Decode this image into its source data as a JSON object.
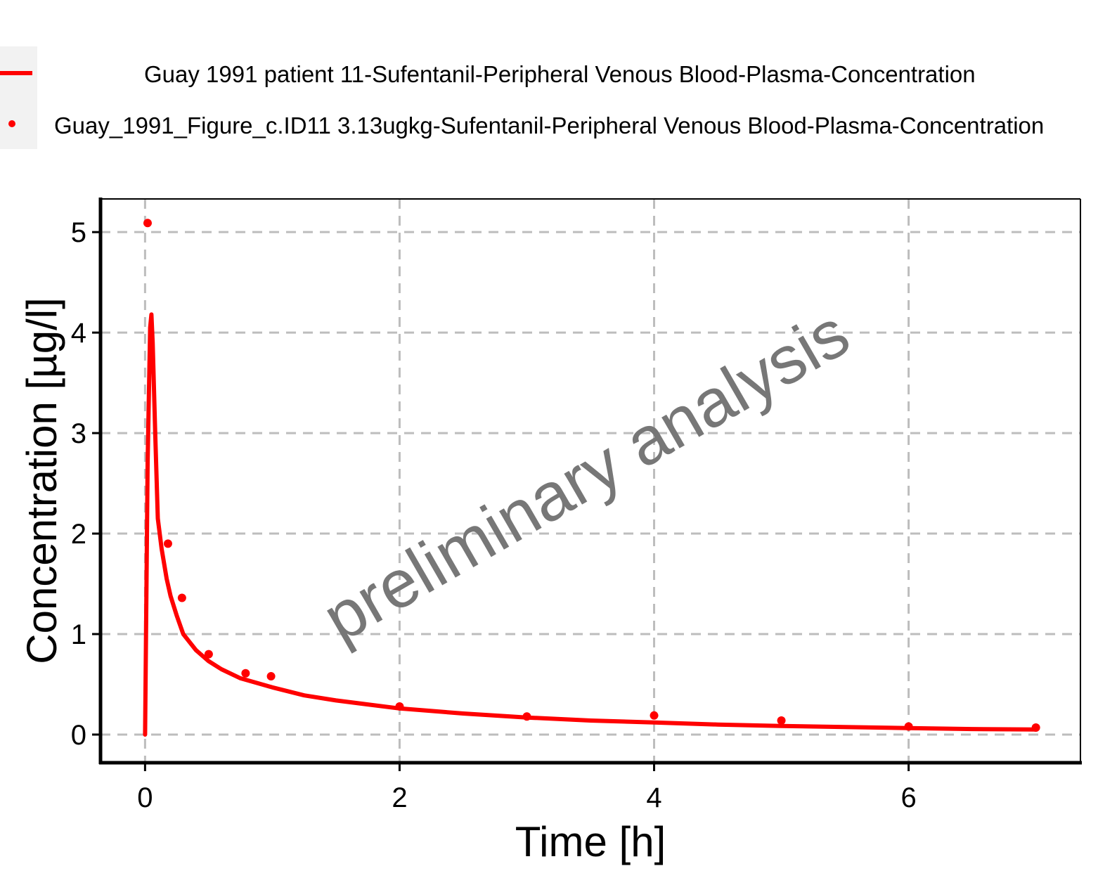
{
  "chart_data": {
    "type": "line",
    "title": "",
    "xlabel": "Time [h]",
    "ylabel": "Concentration [µg/l]",
    "xlim": [
      -0.35,
      7.35
    ],
    "ylim": [
      -0.28,
      5.33
    ],
    "xticks": [
      0,
      2,
      4,
      6
    ],
    "yticks": [
      0,
      1,
      2,
      3,
      4,
      5
    ],
    "grid": true,
    "legend_position": "top-left",
    "watermark": "preliminary analysis",
    "series": [
      {
        "name": "Guay 1991 patient 11-Sufentanil-Peripheral Venous Blood-Plasma-Concentration",
        "kind": "line",
        "color": "#ff0000",
        "x": [
          0,
          0.02,
          0.04,
          0.05,
          0.06,
          0.08,
          0.1,
          0.13,
          0.17,
          0.2,
          0.25,
          0.3,
          0.4,
          0.5,
          0.6,
          0.75,
          1.0,
          1.25,
          1.5,
          1.75,
          2.0,
          2.5,
          3.0,
          3.5,
          4.0,
          4.5,
          5.0,
          5.5,
          6.0,
          6.5,
          7.0
        ],
        "y": [
          0,
          2.7,
          4.05,
          4.18,
          3.9,
          3.0,
          2.15,
          1.85,
          1.55,
          1.38,
          1.18,
          1.0,
          0.84,
          0.73,
          0.65,
          0.56,
          0.47,
          0.39,
          0.34,
          0.3,
          0.26,
          0.21,
          0.17,
          0.14,
          0.12,
          0.1,
          0.085,
          0.075,
          0.065,
          0.055,
          0.05
        ]
      },
      {
        "name": "Guay_1991_Figure_c.ID11 3.13ugkg-Sufentanil-Peripheral Venous Blood-Plasma-Concentration",
        "kind": "points",
        "color": "#ff0000",
        "x": [
          0.02,
          0.18,
          0.29,
          0.5,
          0.79,
          0.99,
          2.0,
          3.0,
          4.0,
          5.0,
          6.0,
          7.0
        ],
        "y": [
          5.09,
          1.9,
          1.36,
          0.8,
          0.61,
          0.58,
          0.28,
          0.18,
          0.19,
          0.14,
          0.08,
          0.07
        ]
      }
    ]
  }
}
